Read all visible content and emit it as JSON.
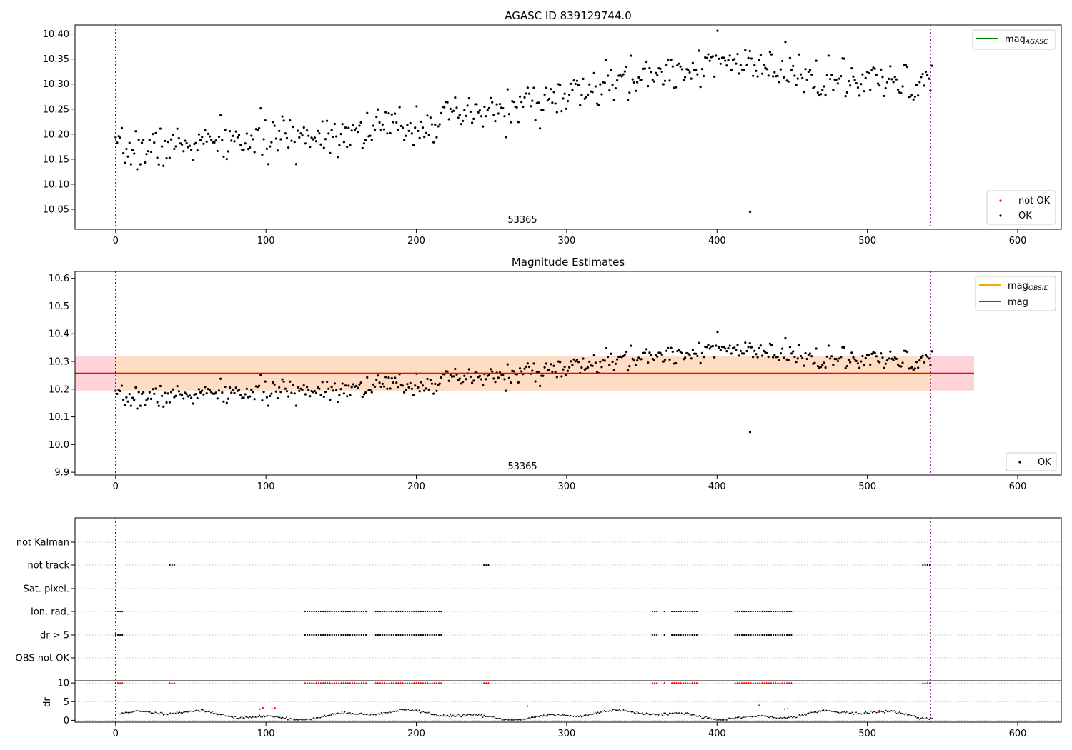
{
  "chart_data": [
    {
      "type": "scatter",
      "title": "AGASC ID 839129744.0",
      "xlim": [
        -27,
        629
      ],
      "ylim": [
        10.01,
        10.418
      ],
      "xticks": [
        0,
        100,
        200,
        300,
        400,
        500,
        600
      ],
      "yticks": [
        10.05,
        10.1,
        10.15,
        10.2,
        10.25,
        10.3,
        10.35,
        10.4
      ],
      "vlines": [
        0,
        542
      ],
      "annotation": {
        "text": "53365",
        "x": 271,
        "y": 10.022
      },
      "legend_upper": [
        {
          "label": "mag",
          "sub": "AGASC",
          "color": "#008000"
        }
      ],
      "legend_lower": [
        {
          "label": "not OK",
          "color": "#ff0000"
        },
        {
          "label": "OK",
          "color": "#000000"
        }
      ],
      "trend": [
        [
          0,
          10.165
        ],
        [
          50,
          10.18
        ],
        [
          100,
          10.19
        ],
        [
          150,
          10.205
        ],
        [
          200,
          10.22
        ],
        [
          250,
          10.245
        ],
        [
          300,
          10.275
        ],
        [
          350,
          10.315
        ],
        [
          400,
          10.345
        ],
        [
          440,
          10.325
        ],
        [
          480,
          10.305
        ],
        [
          520,
          10.3
        ],
        [
          543,
          10.3
        ]
      ],
      "outlier": [
        422,
        10.045
      ],
      "n_points": 530,
      "x_range": [
        0,
        543
      ],
      "scatter_sd": 0.02,
      "seed": 7
    },
    {
      "type": "scatter",
      "title": "Magnitude Estimates",
      "xlim": [
        -27,
        629
      ],
      "ylim": [
        9.89,
        10.625
      ],
      "xticks": [
        0,
        100,
        200,
        300,
        400,
        500,
        600
      ],
      "yticks": [
        9.9,
        10.0,
        10.1,
        10.2,
        10.3,
        10.4,
        10.5,
        10.6
      ],
      "vlines": [
        0,
        542
      ],
      "annotation": {
        "text": "53365",
        "x": 271,
        "y": 9.912
      },
      "mag": 10.257,
      "mag_band": [
        10.195,
        10.318
      ],
      "band_x": [
        -27,
        571
      ],
      "band_colors": {
        "pink": "#ffd2d8",
        "orange": "#ffdcc4"
      },
      "obsid_band_x": [
        0,
        543
      ],
      "legend_upper": [
        {
          "label": "mag",
          "sub": "OBSID",
          "color": "#ffa500"
        },
        {
          "label": "mag",
          "sub": "",
          "color": "#ff0000"
        }
      ],
      "legend_lower": [
        {
          "label": "OK",
          "color": "#000000"
        }
      ]
    },
    {
      "type": "scatter",
      "xlim": [
        -27,
        629
      ],
      "xticks": [
        0,
        100,
        200,
        300,
        400,
        500,
        600
      ],
      "vlines": [
        0,
        542
      ],
      "flag_labels": [
        "not Kalman",
        "not track",
        "Sat. pixel.",
        "Ion. rad.",
        "dr > 5",
        "OBS not OK"
      ],
      "flag_ranges": {
        "not track": [
          [
            36,
            40
          ],
          [
            245,
            249
          ],
          [
            537,
            542
          ]
        ],
        "Ion. rad.": [
          [
            0,
            5
          ],
          [
            126,
            167
          ],
          [
            173,
            217
          ],
          [
            357,
            360
          ],
          [
            365,
            365
          ],
          [
            370,
            387
          ],
          [
            412,
            450
          ]
        ],
        "dr > 5": [
          [
            0,
            5
          ],
          [
            126,
            167
          ],
          [
            173,
            217
          ],
          [
            357,
            360
          ],
          [
            365,
            365
          ],
          [
            370,
            387
          ],
          [
            412,
            450
          ]
        ]
      },
      "dr_ylabel": "dr",
      "dr_yticks": [
        0,
        5,
        10
      ],
      "dr_ylim": [
        -0.5,
        10.6
      ],
      "dr_flag_ranges": [
        [
          0,
          5
        ],
        [
          36,
          40
        ],
        [
          126,
          167
        ],
        [
          173,
          217
        ],
        [
          245,
          249
        ],
        [
          357,
          360
        ],
        [
          365,
          365
        ],
        [
          370,
          387
        ],
        [
          412,
          450
        ],
        [
          537,
          542
        ]
      ],
      "dr_red_points": [
        [
          96,
          3.0
        ],
        [
          98,
          3.3
        ],
        [
          104,
          3.1
        ],
        [
          106,
          3.3
        ],
        [
          193,
          2.8
        ],
        [
          274,
          3.8
        ],
        [
          428,
          4.0
        ],
        [
          445,
          3.0
        ],
        [
          447,
          3.1
        ],
        [
          508,
          2.6
        ]
      ]
    }
  ]
}
